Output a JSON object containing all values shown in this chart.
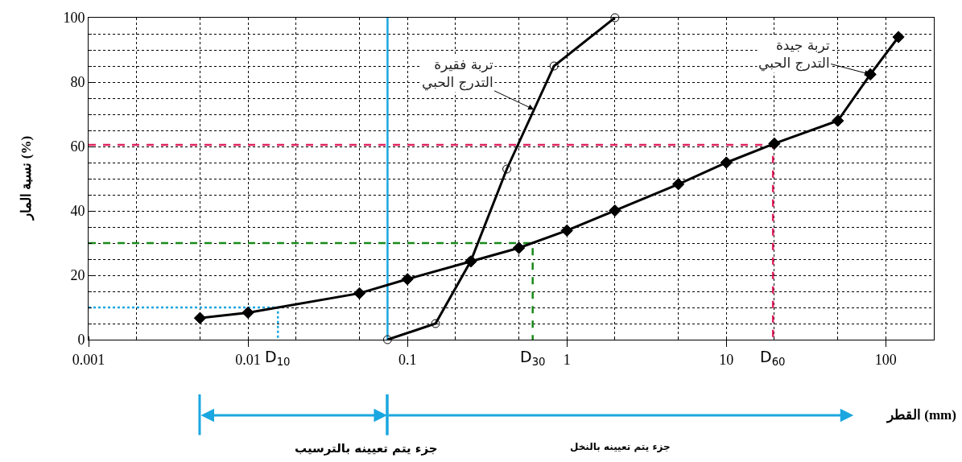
{
  "chart_data": {
    "type": "line",
    "xlabel": "القطر (mm)",
    "ylabel": "نسبة المار (%)",
    "log": "x",
    "grid": true,
    "xlim": [
      0.001,
      200
    ],
    "xticks": [
      0.001,
      0.01,
      0.1,
      1,
      10,
      100
    ],
    "ylim": [
      0,
      100
    ],
    "yticks": [
      0,
      20,
      40,
      60,
      80,
      100
    ],
    "series": [
      {
        "color": "#000000",
        "marker": "diamond",
        "line_style": "solid",
        "x": [
          0.005,
          0.01,
          0.05,
          0.1,
          0.25,
          0.5,
          1,
          2,
          5,
          10,
          20,
          50,
          80,
          120
        ],
        "values": [
          6.7,
          8.4,
          14.4,
          18.8,
          24.3,
          28.5,
          33.9,
          40.1,
          48.3,
          55,
          60.9,
          68,
          82.4,
          94
        ]
      },
      {
        "color": "#000000",
        "marker": "circle",
        "line_style": "solid",
        "x": [
          0.075,
          0.15,
          0.25,
          0.42,
          0.83,
          2
        ],
        "values": [
          0,
          5,
          24.5,
          53,
          85,
          100
        ]
      },
      {
        "color": "#1aa7e0",
        "marker": "none",
        "line_style": "dotted",
        "x": [
          0.001,
          0.0154,
          0.0154
        ],
        "values": [
          10,
          10,
          0
        ]
      },
      {
        "color": "#1a8a1a",
        "marker": "none",
        "line_style": "dashed",
        "x": [
          0.001,
          0.61,
          0.61
        ],
        "values": [
          30,
          30,
          0
        ]
      },
      {
        "color": "#e0245e",
        "marker": "none",
        "line_style": "dashed",
        "x": [
          0.001,
          19.6,
          19.6
        ],
        "values": [
          60.5,
          60.5,
          0
        ]
      },
      {
        "color": "#1aa7e0",
        "marker": "none",
        "line_style": "solid",
        "x": [
          0.075,
          0.075
        ],
        "values": [
          0,
          100
        ]
      }
    ],
    "annotations": [
      {
        "text": "تربة فقيرة\nالتدرج الحبي",
        "x": 0.62,
        "y": 71.5
      },
      {
        "text": "تربة جيدة\nالتدرج الحبي",
        "x": 80,
        "y": 82.4
      },
      {
        "text": "D$_{10}$",
        "x": 0.0154,
        "y": 0
      },
      {
        "text": "D$_{30}$",
        "x": 0.61,
        "y": 0
      },
      {
        "text": "D$_{60}$",
        "x": 19.6,
        "y": 0
      },
      "جزء يتم تعيينه بالترسيب",
      "جزء يتم تعيينه بالنخل"
    ]
  }
}
